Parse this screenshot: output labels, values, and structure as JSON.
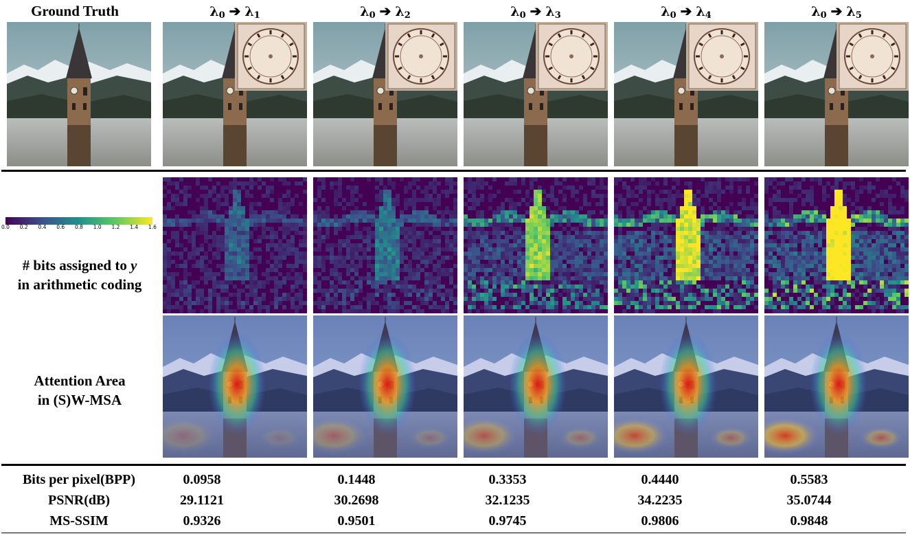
{
  "headers": {
    "ground_truth": "Ground Truth",
    "columns": [
      {
        "from": "λ",
        "from_sub": "0",
        "arrow": "➔",
        "to": "λ",
        "to_sub": "1"
      },
      {
        "from": "λ",
        "from_sub": "0",
        "arrow": "➔",
        "to": "λ",
        "to_sub": "2"
      },
      {
        "from": "λ",
        "from_sub": "0",
        "arrow": "➔",
        "to": "λ",
        "to_sub": "3"
      },
      {
        "from": "λ",
        "from_sub": "0",
        "arrow": "➔",
        "to": "λ",
        "to_sub": "4"
      },
      {
        "from": "λ",
        "from_sub": "0",
        "arrow": "➔",
        "to": "λ",
        "to_sub": "5"
      }
    ]
  },
  "colorbar": {
    "ticks": [
      "0.0",
      "0.2",
      "0.4",
      "0.6",
      "0.8",
      "1.0",
      "1.2",
      "1.4",
      "1.6"
    ],
    "colors": [
      "#440154",
      "#3b528b",
      "#21918c",
      "#5ec962",
      "#fde725"
    ],
    "range": [
      0.0,
      1.6
    ]
  },
  "row_labels": {
    "bits_line1_prefix": "# bits assigned to ",
    "bits_line1_var": "y",
    "bits_line2": "in arithmetic coding",
    "attention_line1": "Attention Area",
    "attention_line2": "in (S)W-MSA"
  },
  "bits_levels": [
    0.12,
    0.2,
    0.62,
    0.78,
    0.88
  ],
  "metrics": {
    "rows": [
      {
        "label": "Bits per pixel(BPP)",
        "values": [
          "0.0958",
          "0.1448",
          "0.3353",
          "0.4440",
          "0.5583"
        ]
      },
      {
        "label": "PSNR(dB)",
        "values": [
          "29.1121",
          "30.2698",
          "32.1235",
          "34.2235",
          "35.0744"
        ]
      },
      {
        "label": "MS-SSIM",
        "values": [
          "0.9326",
          "0.9501",
          "0.9745",
          "0.9806",
          "0.9848"
        ]
      }
    ]
  }
}
